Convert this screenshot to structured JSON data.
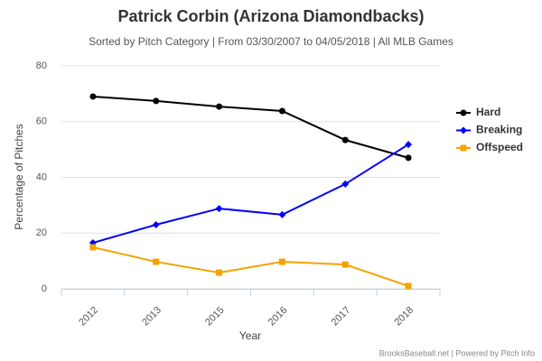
{
  "chart_data": {
    "type": "line",
    "title": "Patrick Corbin (Arizona Diamondbacks)",
    "subtitle": "Sorted by Pitch Category | From 03/30/2007 to 04/05/2018 | All MLB Games",
    "x_label": "Year",
    "y_label": "Percentage of Pitches",
    "credit": "BrooksBaseball.net | Powered by Pitch Info",
    "categories": [
      "2012",
      "2013",
      "2015",
      "2016",
      "2017",
      "2018"
    ],
    "series": [
      {
        "name": "Hard",
        "color": "#000000",
        "marker": "circle",
        "values": [
          69.0,
          67.4,
          65.4,
          63.8,
          53.4,
          47.0
        ]
      },
      {
        "name": "Breaking",
        "color": "#0000ff",
        "marker": "diamond",
        "values": [
          16.5,
          23.0,
          28.8,
          26.6,
          37.6,
          51.8
        ]
      },
      {
        "name": "Offspeed",
        "color": "#f5a300",
        "marker": "square",
        "values": [
          14.9,
          9.7,
          5.8,
          9.7,
          8.7,
          1.0
        ]
      }
    ],
    "ylim": [
      0,
      80
    ],
    "yticks": [
      0,
      20,
      40,
      60,
      80
    ],
    "grid": true,
    "legend": "right"
  }
}
